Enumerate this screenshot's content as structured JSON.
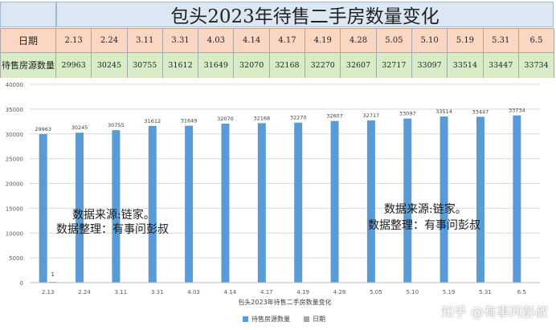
{
  "title": "包头2023年待售二手房数量变化",
  "table": {
    "row1_label": "日期",
    "row2_label": "待售房源数量",
    "dates": [
      "2.13",
      "2.24",
      "3.11",
      "3.31",
      "4.03",
      "4.14",
      "4.17",
      "4.19",
      "4.28",
      "5.05",
      "5.10",
      "5.19",
      "5.31",
      "6.5"
    ],
    "counts": [
      "29963",
      "30245",
      "30755",
      "31612",
      "31649",
      "32070",
      "32168",
      "32270",
      "32607",
      "32717",
      "33097",
      "33514",
      "33447",
      "33734"
    ]
  },
  "chart_data": {
    "type": "bar",
    "title": "包头2023年待售二手房数量变化",
    "categories": [
      "2.13",
      "2.24",
      "3.11",
      "3.31",
      "4.03",
      "4.14",
      "4.17",
      "4.19",
      "4.28",
      "5.05",
      "5.10",
      "5.19",
      "5.31",
      "6.5"
    ],
    "series": [
      {
        "name": "待售房源数量",
        "values": [
          29963,
          30245,
          30755,
          31612,
          31649,
          32070,
          32168,
          32270,
          32607,
          32717,
          33097,
          33514,
          33447,
          33734
        ],
        "color": "#5b9bd5"
      },
      {
        "name": "日期",
        "values": [
          1,
          null,
          null,
          null,
          null,
          null,
          null,
          null,
          null,
          null,
          null,
          null,
          null,
          null
        ],
        "color": "#a5a5a5"
      }
    ],
    "data_labels": [
      "29963",
      "30245",
      "30755",
      "31612",
      "31649",
      "32070",
      "32168",
      "32270",
      "32607",
      "32717",
      "33097",
      "33514",
      "33447",
      "33734"
    ],
    "second_series_label": "1",
    "y_ticks": [
      "0",
      "5000",
      "10000",
      "15000",
      "20000",
      "25000",
      "30000",
      "35000",
      "40000"
    ],
    "ylim": [
      0,
      40000
    ],
    "grid": true,
    "legend_position": "bottom",
    "xlabel": "包头2023年待售二手房数量变化",
    "ylabel": ""
  },
  "watermarks": {
    "left_line1": "数据来源:链家。",
    "left_line2": "数据整理：有事问彭叔",
    "right_line1": "数据来源:链家。",
    "right_line2": "数据整理：有事问彭叔",
    "zhihu": "知乎 @有事问彭叔"
  }
}
